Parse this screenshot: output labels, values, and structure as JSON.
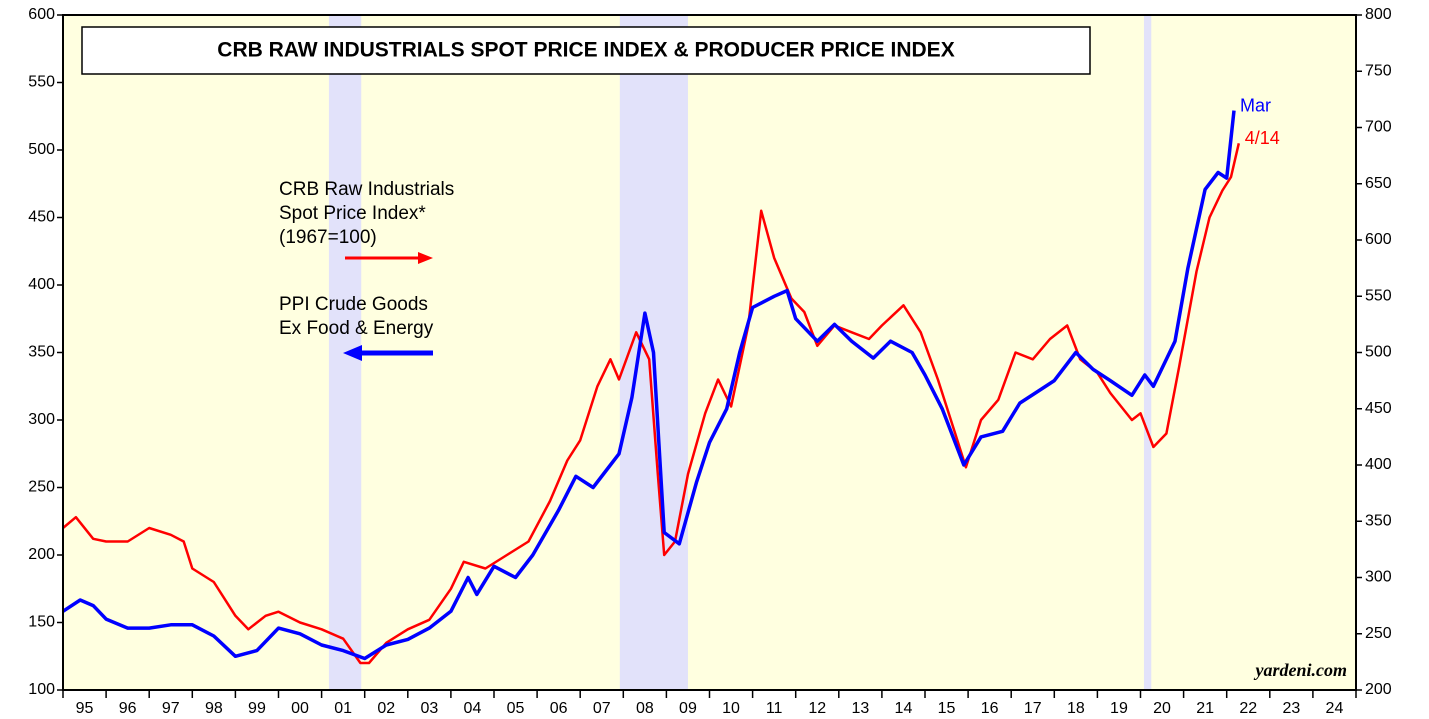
{
  "chart_data": {
    "type": "line",
    "title": "CRB RAW INDUSTRIALS SPOT PRICE INDEX & PRODUCER PRICE INDEX",
    "source": "yardeni.com",
    "background_color": "#ffffe0",
    "shaded_color": "#e2e2fa",
    "shaded_periods": [
      [
        2001.17,
        2001.92
      ],
      [
        2007.92,
        2009.5
      ],
      [
        2020.08,
        2020.25
      ]
    ],
    "xlim": [
      1995,
      2025
    ],
    "xticks": [
      1995,
      1996,
      1997,
      1998,
      1999,
      2000,
      2001,
      2002,
      2003,
      2004,
      2005,
      2006,
      2007,
      2008,
      2009,
      2010,
      2011,
      2012,
      2013,
      2014,
      2015,
      2016,
      2017,
      2018,
      2019,
      2020,
      2021,
      2022,
      2023,
      2024,
      2025
    ],
    "x_labels": [
      {
        "value": 1995.5,
        "label": "95"
      },
      {
        "value": 1996.5,
        "label": "96"
      },
      {
        "value": 1997.5,
        "label": "97"
      },
      {
        "value": 1998.5,
        "label": "98"
      },
      {
        "value": 1999.5,
        "label": "99"
      },
      {
        "value": 2000.5,
        "label": "00"
      },
      {
        "value": 2001.5,
        "label": "01"
      },
      {
        "value": 2002.5,
        "label": "02"
      },
      {
        "value": 2003.5,
        "label": "03"
      },
      {
        "value": 2004.5,
        "label": "04"
      },
      {
        "value": 2005.5,
        "label": "05"
      },
      {
        "value": 2006.5,
        "label": "06"
      },
      {
        "value": 2007.5,
        "label": "07"
      },
      {
        "value": 2008.5,
        "label": "08"
      },
      {
        "value": 2009.5,
        "label": "09"
      },
      {
        "value": 2010.5,
        "label": "10"
      },
      {
        "value": 2011.5,
        "label": "11"
      },
      {
        "value": 2012.5,
        "label": "12"
      },
      {
        "value": 2013.5,
        "label": "13"
      },
      {
        "value": 2014.5,
        "label": "14"
      },
      {
        "value": 2015.5,
        "label": "15"
      },
      {
        "value": 2016.5,
        "label": "16"
      },
      {
        "value": 2017.5,
        "label": "17"
      },
      {
        "value": 2018.5,
        "label": "18"
      },
      {
        "value": 2019.5,
        "label": "19"
      },
      {
        "value": 2020.5,
        "label": "20"
      },
      {
        "value": 2021.5,
        "label": "21"
      },
      {
        "value": 2022.5,
        "label": "22"
      },
      {
        "value": 2023.5,
        "label": "23"
      },
      {
        "value": 2024.5,
        "label": "24"
      }
    ],
    "ylim": [
      100,
      600
    ],
    "yticks": [
      100,
      150,
      200,
      250,
      300,
      350,
      400,
      450,
      500,
      550,
      600
    ],
    "y2lim": [
      200,
      800
    ],
    "y2ticks": [
      200,
      250,
      300,
      350,
      400,
      450,
      500,
      550,
      600,
      650,
      700,
      750,
      800
    ],
    "series": [
      {
        "name": [
          "CRB Raw Industrials",
          "Spot Price Index*",
          "(1967=100)"
        ],
        "color": "#ff0000",
        "axis": "y",
        "end_label": "4/14",
        "x": [
          1995.0,
          1995.3,
          1995.7,
          1996.0,
          1996.5,
          1997.0,
          1997.5,
          1997.8,
          1998.0,
          1998.5,
          1998.8,
          1999.0,
          1999.3,
          1999.7,
          2000.0,
          2000.5,
          2001.0,
          2001.5,
          2001.9,
          2002.1,
          2002.5,
          2003.0,
          2003.5,
          2004.0,
          2004.3,
          2004.8,
          2005.3,
          2005.8,
          2006.3,
          2006.7,
          2007.0,
          2007.4,
          2007.7,
          2007.9,
          2008.3,
          2008.6,
          2008.8,
          2008.95,
          2009.2,
          2009.5,
          2009.9,
          2010.2,
          2010.5,
          2010.9,
          2011.2,
          2011.5,
          2011.9,
          2012.2,
          2012.5,
          2012.9,
          2013.3,
          2013.7,
          2014.0,
          2014.5,
          2014.9,
          2015.3,
          2015.7,
          2015.95,
          2016.3,
          2016.7,
          2017.1,
          2017.5,
          2017.9,
          2018.3,
          2018.6,
          2019.0,
          2019.3,
          2019.8,
          2020.0,
          2020.3,
          2020.6,
          2020.9,
          2021.3,
          2021.6,
          2021.9,
          2022.1,
          2022.28
        ],
        "values": [
          220,
          228,
          212,
          210,
          210,
          220,
          215,
          210,
          190,
          180,
          165,
          155,
          145,
          155,
          158,
          150,
          145,
          138,
          120,
          120,
          135,
          145,
          152,
          175,
          195,
          190,
          200,
          210,
          240,
          270,
          285,
          325,
          345,
          330,
          365,
          345,
          260,
          200,
          210,
          260,
          305,
          330,
          310,
          370,
          455,
          420,
          390,
          380,
          355,
          370,
          365,
          360,
          370,
          385,
          365,
          330,
          290,
          265,
          300,
          315,
          350,
          345,
          360,
          370,
          345,
          335,
          320,
          300,
          305,
          280,
          290,
          340,
          410,
          450,
          470,
          480,
          505
        ]
      },
      {
        "name": [
          "PPI Crude Goods",
          "Ex Food & Energy"
        ],
        "color": "#0000ff",
        "axis": "y2",
        "end_label": "Mar",
        "x": [
          1995.0,
          1995.4,
          1995.7,
          1996.0,
          1996.5,
          1997.0,
          1997.5,
          1998.0,
          1998.5,
          1999.0,
          1999.5,
          2000.0,
          2000.5,
          2001.0,
          2001.5,
          2002.0,
          2002.5,
          2003.0,
          2003.5,
          2004.0,
          2004.4,
          2004.6,
          2005.0,
          2005.5,
          2005.9,
          2006.5,
          2006.9,
          2007.3,
          2007.7,
          2007.9,
          2008.2,
          2008.5,
          2008.7,
          2008.95,
          2009.3,
          2009.7,
          2010.0,
          2010.4,
          2010.7,
          2011.0,
          2011.5,
          2011.8,
          2012.0,
          2012.5,
          2012.9,
          2013.3,
          2013.8,
          2014.2,
          2014.7,
          2015.0,
          2015.4,
          2015.9,
          2016.3,
          2016.8,
          2017.2,
          2017.6,
          2018.0,
          2018.5,
          2018.9,
          2019.3,
          2019.8,
          2020.1,
          2020.3,
          2020.8,
          2021.1,
          2021.5,
          2021.8,
          2022.0,
          2022.17
        ],
        "values": [
          270,
          280,
          275,
          263,
          255,
          255,
          258,
          258,
          248,
          230,
          235,
          255,
          250,
          240,
          235,
          228,
          240,
          245,
          255,
          270,
          300,
          285,
          310,
          300,
          320,
          360,
          390,
          380,
          400,
          410,
          460,
          535,
          500,
          340,
          330,
          385,
          420,
          450,
          500,
          540,
          550,
          555,
          530,
          510,
          525,
          510,
          495,
          510,
          500,
          480,
          450,
          400,
          425,
          430,
          455,
          465,
          475,
          500,
          485,
          475,
          462,
          480,
          470,
          510,
          575,
          645,
          660,
          655,
          715
        ]
      }
    ]
  }
}
